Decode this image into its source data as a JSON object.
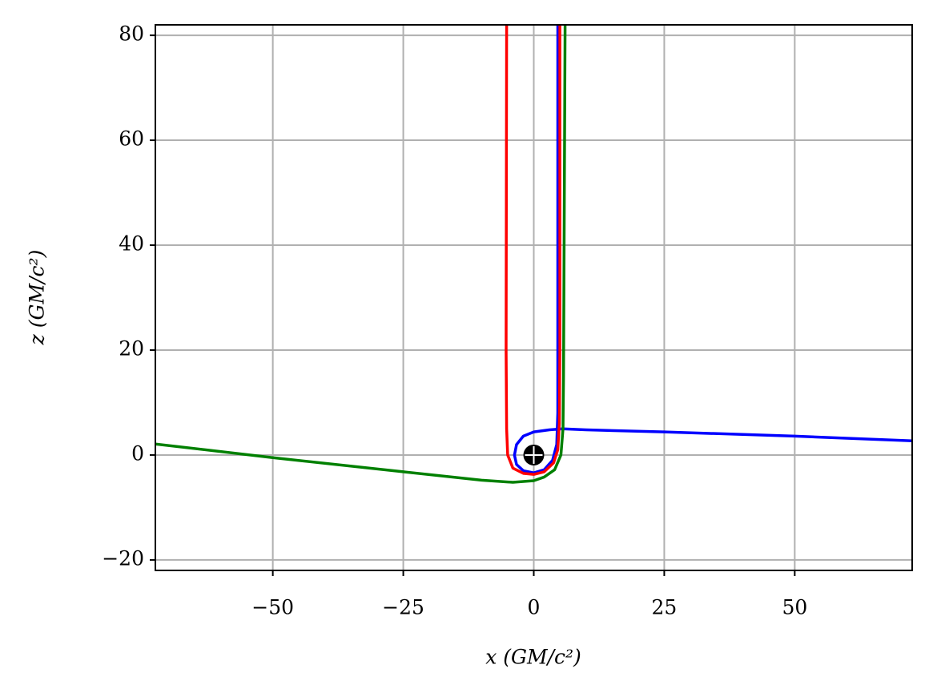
{
  "chart_data": {
    "type": "line",
    "x_label": "x (GM/c²)",
    "y_label": "z (GM/c²)",
    "xlim": [
      -72.5,
      72.5
    ],
    "ylim": [
      -22,
      82
    ],
    "xticks": [
      {
        "value": -50,
        "label": "−50"
      },
      {
        "value": -25,
        "label": "−25"
      },
      0,
      25,
      50
    ],
    "yticks": [
      {
        "value": -20,
        "label": "−20"
      },
      0,
      20,
      40,
      60,
      80
    ],
    "grid": true,
    "series": [
      {
        "color": "#0000ff",
        "x": [
          72.5,
          50,
          25,
          10,
          5.5,
          3,
          0,
          -2,
          -3.3,
          -3.7,
          -3.3,
          -2,
          0,
          2,
          3.6,
          4.4,
          4.6,
          4.6,
          4.6
        ],
        "values": [
          2.7,
          3.6,
          4.4,
          4.8,
          5.0,
          4.8,
          4.4,
          3.6,
          2,
          0,
          -1.8,
          -3.0,
          -3.4,
          -2.8,
          -1,
          2,
          8,
          20,
          82
        ]
      },
      {
        "color": "#ff0000",
        "x": [
          -5.2,
          -5.3,
          -5.2,
          -5,
          -4,
          -2,
          0,
          2,
          3.8,
          4.6,
          4.9,
          5,
          5
        ],
        "values": [
          82,
          20,
          5,
          0,
          -2.5,
          -3.5,
          -3.7,
          -3.2,
          -1.5,
          1,
          6,
          20,
          82
        ]
      },
      {
        "color": "#008000",
        "x": [
          -72.5,
          -50,
          -25,
          -10,
          -4,
          0,
          2,
          4,
          5.2,
          5.6,
          5.7,
          6.0
        ],
        "values": [
          2.1,
          -0.5,
          -3.2,
          -4.8,
          -5.2,
          -4.9,
          -4.2,
          -2.8,
          0,
          5,
          15,
          82
        ]
      }
    ],
    "points": [
      {
        "x": 0,
        "y": 0,
        "color": "#000000"
      }
    ]
  }
}
